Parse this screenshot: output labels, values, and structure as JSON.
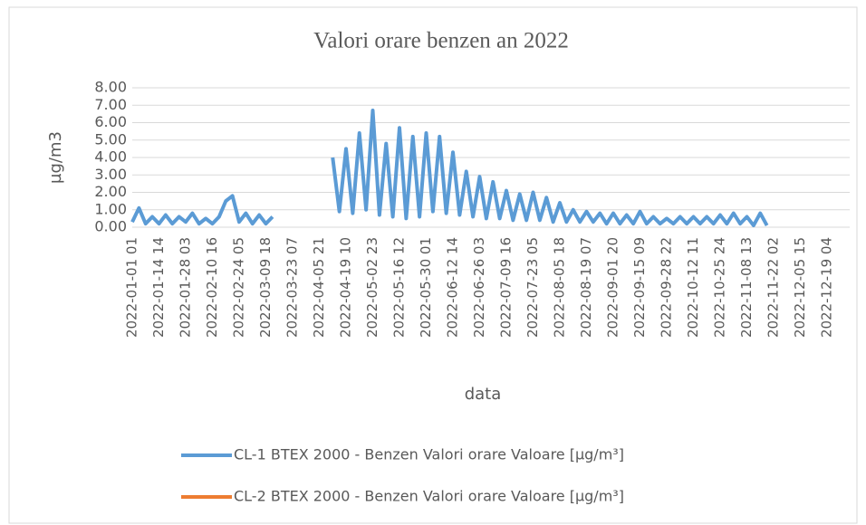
{
  "chart_data": {
    "type": "line",
    "title": "Valori orare benzen an 2022",
    "xlabel": "data",
    "ylabel": "µg/m3",
    "categories": [
      "2022-01-01 01",
      null,
      null,
      null,
      "2022-01-14 14",
      null,
      null,
      null,
      "2022-01-28 03",
      null,
      null,
      null,
      "2022-02-10 16",
      null,
      null,
      null,
      "2022-02-24 05",
      null,
      null,
      null,
      "2022-03-09 18",
      null,
      null,
      null,
      "2022-03-23 07",
      null,
      null,
      null,
      "2022-04-05 21",
      null,
      null,
      null,
      "2022-04-19 10",
      null,
      null,
      null,
      "2022-05-02 23",
      null,
      null,
      null,
      "2022-05-16 12",
      null,
      null,
      null,
      "2022-05-30 01",
      null,
      null,
      null,
      "2022-06-12 14",
      null,
      null,
      null,
      "2022-06-26 03",
      null,
      null,
      null,
      "2022-07-09 16",
      null,
      null,
      null,
      "2022-07-23 05",
      null,
      null,
      null,
      "2022-08-05 18",
      null,
      null,
      null,
      "2022-08-19 07",
      null,
      null,
      null,
      "2022-09-01 20",
      null,
      null,
      null,
      "2022-09-15 09",
      null,
      null,
      null,
      "2022-09-28 22",
      null,
      null,
      null,
      "2022-10-12 11",
      null,
      null,
      null,
      "2022-10-25 24",
      null,
      null,
      null,
      "2022-11-08 13",
      null,
      null,
      null,
      "2022-11-22 02",
      null,
      null,
      null,
      "2022-12-05 15",
      null,
      null,
      null,
      "2022-12-19 04",
      null,
      null
    ],
    "series": [
      {
        "name": "CL-1 BTEX 2000 - Benzen Valori orare Valoare [µg/m³]",
        "color": "#5b9bd5",
        "values": [
          0.3,
          1.1,
          0.2,
          0.6,
          0.2,
          0.7,
          0.2,
          0.6,
          0.3,
          0.8,
          0.2,
          0.5,
          0.2,
          0.6,
          1.5,
          1.8,
          0.3,
          0.8,
          0.2,
          0.7,
          0.2,
          0.6,
          null,
          null,
          null,
          null,
          null,
          null,
          null,
          null,
          4.0,
          0.9,
          4.5,
          0.8,
          5.4,
          1.0,
          6.7,
          0.7,
          4.8,
          0.6,
          5.7,
          0.5,
          5.2,
          0.6,
          5.4,
          0.9,
          5.2,
          0.8,
          4.3,
          0.7,
          3.2,
          0.6,
          2.9,
          0.5,
          2.6,
          0.5,
          2.1,
          0.4,
          1.9,
          0.4,
          2.0,
          0.4,
          1.7,
          0.3,
          1.4,
          0.3,
          1.0,
          0.3,
          0.9,
          0.3,
          0.8,
          0.2,
          0.8,
          0.2,
          0.7,
          0.2,
          0.9,
          0.2,
          0.6,
          0.2,
          0.5,
          0.2,
          0.6,
          0.2,
          0.6,
          0.2,
          0.6,
          0.2,
          0.7,
          0.2,
          0.8,
          0.2,
          0.6,
          0.1,
          0.8,
          0.1,
          null,
          null,
          null,
          null,
          null,
          null,
          null,
          null,
          null,
          null,
          null
        ]
      },
      {
        "name": "CL-2 BTEX 2000 - Benzen Valori orare Valoare [µg/m³]",
        "color": "#ed7d31",
        "values": [
          null,
          null,
          null,
          null,
          null,
          null,
          null,
          null,
          null,
          null,
          null,
          null,
          null,
          null,
          null,
          null,
          null,
          null,
          null,
          null,
          null,
          null,
          null,
          null,
          null,
          null,
          null,
          null,
          null,
          null,
          null,
          null,
          null,
          null,
          null,
          null,
          null,
          null,
          null,
          null,
          null,
          null,
          null,
          null,
          null,
          null,
          null,
          null,
          null,
          null,
          null,
          null,
          null,
          null,
          null,
          null,
          null,
          null,
          null,
          null,
          null,
          null,
          null,
          null,
          null,
          null,
          null,
          null,
          null,
          null,
          null,
          null,
          null,
          null,
          null,
          null,
          null,
          null,
          null,
          null,
          null,
          null,
          null,
          null,
          null,
          null,
          null,
          null,
          null,
          null,
          null,
          null,
          null,
          null,
          null,
          null,
          null,
          null,
          null,
          null,
          null,
          null,
          null,
          null,
          null,
          null,
          null
        ]
      }
    ],
    "ylim": [
      0,
      8
    ],
    "yticks": [
      {
        "value": 0,
        "label": "0.00"
      },
      {
        "value": 1,
        "label": "1.00"
      },
      {
        "value": 2,
        "label": "2.00"
      },
      {
        "value": 3,
        "label": "3.00"
      },
      {
        "value": 4,
        "label": "4.00"
      },
      {
        "value": 5,
        "label": "5.00"
      },
      {
        "value": 6,
        "label": "6.00"
      },
      {
        "value": 7,
        "label": "7.00"
      },
      {
        "value": 8,
        "label": "8.00"
      }
    ],
    "grid": true,
    "legend": "bottom"
  }
}
